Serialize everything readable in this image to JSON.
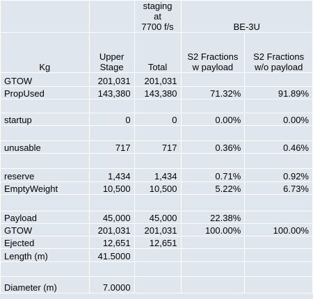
{
  "header_top": {
    "staging": "staging at\n7700 f/s",
    "engine": "BE-3U"
  },
  "columns": {
    "kg": "Kg",
    "upper_stage": "Upper\nStage",
    "total": "Total",
    "s2_with_payload": "S2 Fractions\nw payload",
    "s2_without_payload": "S2 Fractions\nw/o payload"
  },
  "rows": [
    {
      "label": "GTOW",
      "upper": "201,031",
      "total": "201,031",
      "with_pl": "",
      "without_pl": ""
    },
    {
      "label": "PropUsed",
      "upper": "143,380",
      "total": "143,380",
      "with_pl": "71.32%",
      "without_pl": "91.89%"
    },
    {
      "label": "",
      "upper": "",
      "total": "",
      "with_pl": "",
      "without_pl": ""
    },
    {
      "label": "startup",
      "upper": "0",
      "total": "0",
      "with_pl": "0.00%",
      "without_pl": "0.00%"
    },
    {
      "label": "",
      "upper": "",
      "total": "",
      "with_pl": "",
      "without_pl": ""
    },
    {
      "label": "unusable",
      "upper": "717",
      "total": "717",
      "with_pl": "0.36%",
      "without_pl": "0.46%"
    },
    {
      "label": "",
      "upper": "",
      "total": "",
      "with_pl": "",
      "without_pl": ""
    },
    {
      "label": "reserve",
      "upper": "1,434",
      "total": "1,434",
      "with_pl": "0.71%",
      "without_pl": "0.92%"
    },
    {
      "label": "EmptyWeight",
      "upper": "10,500",
      "total": "10,500",
      "with_pl": "5.22%",
      "without_pl": "6.73%"
    },
    {
      "label": "",
      "upper": "",
      "total": "",
      "with_pl": "",
      "without_pl": ""
    },
    {
      "label": "Payload",
      "upper": "45,000",
      "total": "45,000",
      "with_pl": "22.38%",
      "without_pl": ""
    },
    {
      "label": "GTOW",
      "upper": "201,031",
      "total": "201,031",
      "with_pl": "100.00%",
      "without_pl": "100.00%"
    },
    {
      "label": "Ejected",
      "upper": "12,651",
      "total": "12,651",
      "with_pl": "",
      "without_pl": ""
    },
    {
      "label": "Length (m)",
      "upper": "41.5000",
      "total": "",
      "with_pl": "",
      "without_pl": ""
    },
    {
      "label": "",
      "upper": "",
      "total": "",
      "with_pl": "",
      "without_pl": ""
    },
    {
      "label": "Diameter (m)",
      "upper": "7.0000",
      "total": "",
      "with_pl": "",
      "without_pl": ""
    }
  ]
}
